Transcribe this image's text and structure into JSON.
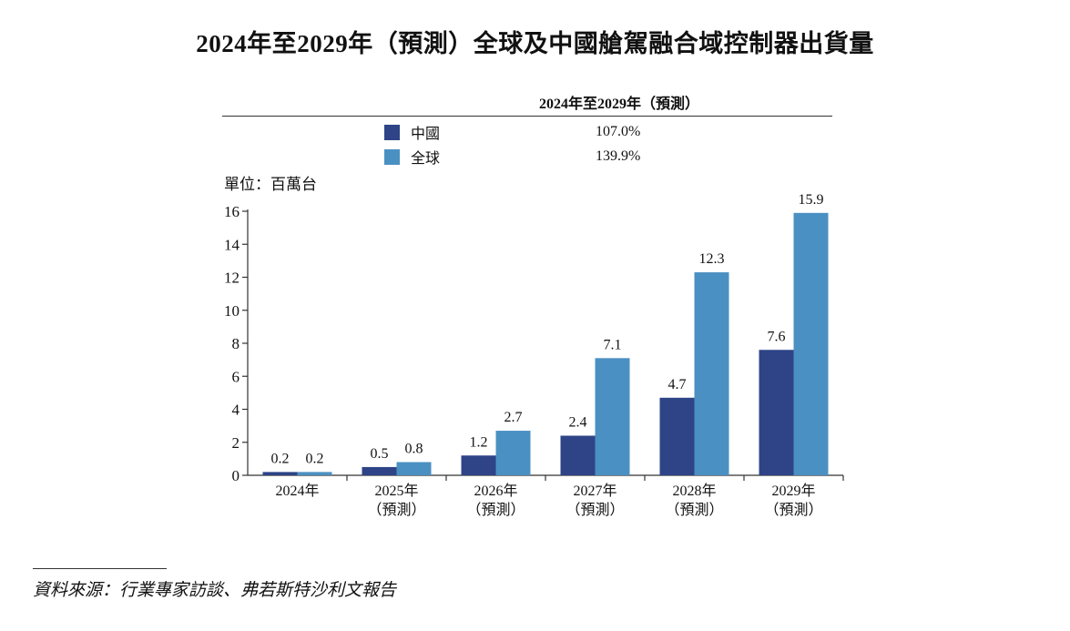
{
  "title": "2024年至2029年（預測）全球及中國艙駕融合域控制器出貨量",
  "legend": {
    "header": "2024年至2029年（預測）",
    "items": [
      {
        "label": "中國",
        "value": "107.0%",
        "color": "#2e4487"
      },
      {
        "label": "全球",
        "value": "139.9%",
        "color": "#4b90c2"
      }
    ]
  },
  "unit_label": "單位：百萬台",
  "source": "資料來源：行業專家訪談、弗若斯特沙利文報告",
  "chart_data": {
    "type": "bar",
    "categories": [
      [
        "2024年"
      ],
      [
        "2025年",
        "（預測）"
      ],
      [
        "2026年",
        "（預測）"
      ],
      [
        "2027年",
        "（預測）"
      ],
      [
        "2028年",
        "（預測）"
      ],
      [
        "2029年",
        "（預測）"
      ]
    ],
    "series": [
      {
        "name": "中國",
        "values": [
          0.2,
          0.5,
          1.2,
          2.4,
          4.7,
          7.6
        ],
        "labels": [
          "0.2",
          "0.5",
          "1.2",
          "2.4",
          "4.7",
          "7.6"
        ],
        "color": "#2e4487"
      },
      {
        "name": "全球",
        "values": [
          0.2,
          0.8,
          2.7,
          7.1,
          12.3,
          15.9
        ],
        "labels": [
          "0.2",
          "0.8",
          "2.7",
          "7.1",
          "12.3",
          "15.9"
        ],
        "color": "#4b90c2"
      }
    ],
    "ylim": [
      0,
      16
    ],
    "yticks": [
      0,
      2,
      4,
      6,
      8,
      10,
      12,
      14,
      16
    ],
    "grid": false,
    "legend_position": "top"
  }
}
